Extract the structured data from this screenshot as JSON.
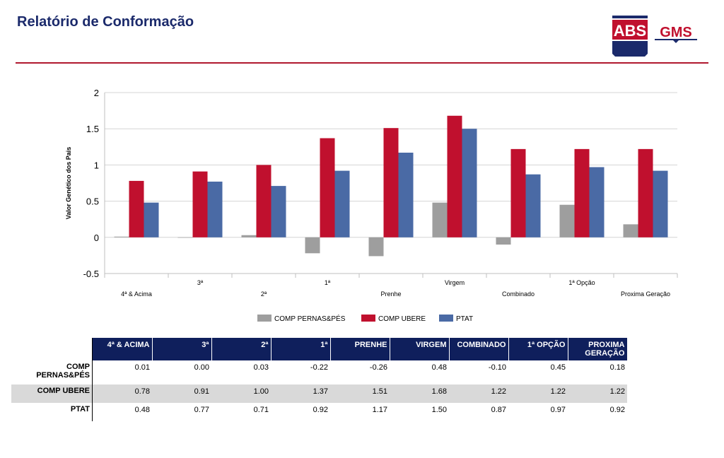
{
  "header": {
    "title": "Relatório de Conformação",
    "logo_text_primary": "ABS",
    "logo_text_secondary": "GMS"
  },
  "colors": {
    "accent": "#b0182f",
    "navy": "#0f1f5c"
  },
  "chart_data": {
    "type": "bar",
    "title": "",
    "xlabel": "",
    "ylabel": "Valor Genético dos Pais",
    "ylim": [
      -0.5,
      2
    ],
    "yticks": [
      -0.5,
      0,
      0.5,
      1,
      1.5,
      2
    ],
    "ytick_labels": [
      "-0.5",
      "0",
      "0.5",
      "1",
      "1.5",
      "2"
    ],
    "grid": true,
    "legend_position": "bottom",
    "categories": [
      "4ª & Acima",
      "3ª",
      "2ª",
      "1ª",
      "Prenhe",
      "Virgem",
      "Combinado",
      "1ª Opção",
      "Proxima Geração"
    ],
    "series": [
      {
        "name": "COMP PERNAS&PÉS",
        "color": "#9e9e9e",
        "values": [
          0.01,
          0.0,
          0.03,
          -0.22,
          -0.26,
          0.48,
          -0.1,
          0.45,
          0.18
        ]
      },
      {
        "name": "COMP UBERE",
        "color": "#c0102e",
        "values": [
          0.78,
          0.91,
          1.0,
          1.37,
          1.51,
          1.68,
          1.22,
          1.22,
          1.22
        ]
      },
      {
        "name": "PTAT",
        "color": "#4a6aa5",
        "values": [
          0.48,
          0.77,
          0.71,
          0.92,
          1.17,
          1.5,
          0.87,
          0.97,
          0.92
        ]
      }
    ]
  },
  "table": {
    "columns": [
      "4ª & ACIMA",
      "3ª",
      "2ª",
      "1ª",
      "PRENHE",
      "VIRGEM",
      "COMBINADO",
      "1ª OPÇÃO",
      "PROXIMA GERAÇÃO"
    ],
    "rows": [
      {
        "label": "COMP PERNAS&PÉS",
        "values": [
          "0.01",
          "0.00",
          "0.03",
          "-0.22",
          "-0.26",
          "0.48",
          "-0.10",
          "0.45",
          "0.18"
        ]
      },
      {
        "label": "COMP UBERE",
        "values": [
          "0.78",
          "0.91",
          "1.00",
          "1.37",
          "1.51",
          "1.68",
          "1.22",
          "1.22",
          "1.22"
        ]
      },
      {
        "label": "PTAT",
        "values": [
          "0.48",
          "0.77",
          "0.71",
          "0.92",
          "1.17",
          "1.50",
          "0.87",
          "0.97",
          "0.92"
        ]
      }
    ]
  }
}
